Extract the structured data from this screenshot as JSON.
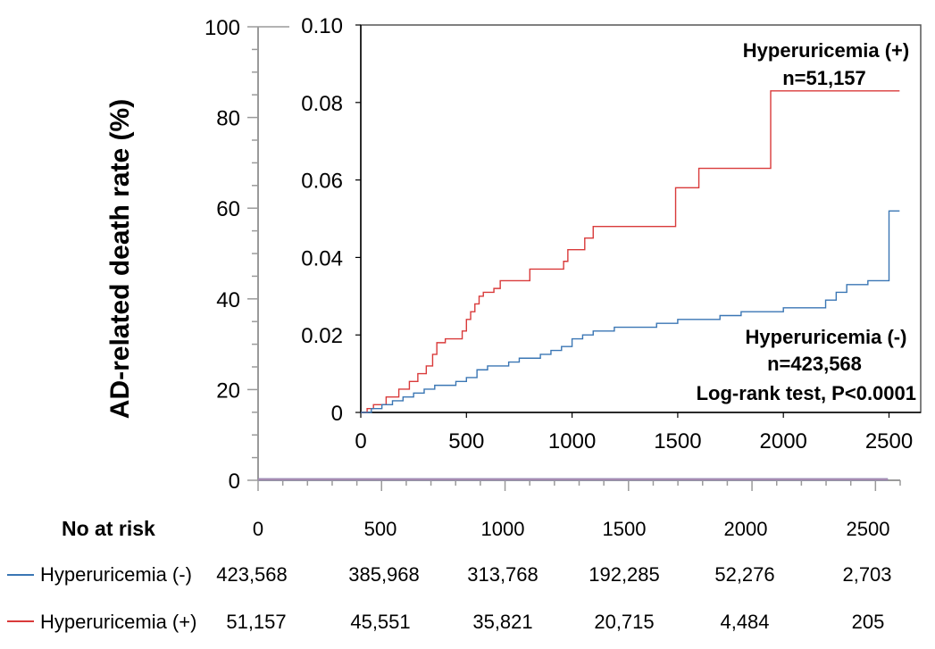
{
  "chart_data": {
    "type": "line",
    "ylabel": "AD-related death rate (%)",
    "outer_axis": {
      "x_ticks": [
        0,
        500,
        1000,
        1500,
        2000,
        2500
      ],
      "y_ticks": [
        0,
        20,
        40,
        60,
        80,
        100
      ],
      "xlim": [
        0,
        2600
      ],
      "ylim": [
        0,
        100
      ]
    },
    "inset": {
      "x_ticks": [
        0,
        500,
        1000,
        1500,
        2000,
        2500
      ],
      "y_ticks": [
        0,
        0.02,
        0.04,
        0.06,
        0.08,
        0.1
      ],
      "y_tick_labels": [
        "0",
        "0.02",
        "0.04",
        "0.06",
        "0.08",
        "0.10"
      ],
      "xlim": [
        0,
        2650
      ],
      "ylim": [
        0,
        0.1
      ]
    },
    "series": [
      {
        "name": "Hyperuricemia (+)",
        "color": "#d93a3a",
        "x": [
          0,
          30,
          60,
          120,
          180,
          230,
          270,
          310,
          340,
          360,
          400,
          450,
          480,
          500,
          520,
          540,
          560,
          580,
          600,
          630,
          660,
          700,
          800,
          900,
          960,
          980,
          1000,
          1060,
          1100,
          1150,
          1200,
          1300,
          1400,
          1490,
          1500,
          1600,
          1620,
          1700,
          1800,
          1900,
          1940,
          2000,
          2100,
          2200,
          2300,
          2400,
          2550
        ],
        "y": [
          0.0,
          0.001,
          0.002,
          0.004,
          0.006,
          0.008,
          0.01,
          0.012,
          0.015,
          0.018,
          0.019,
          0.019,
          0.021,
          0.024,
          0.026,
          0.028,
          0.03,
          0.031,
          0.031,
          0.032,
          0.034,
          0.034,
          0.037,
          0.037,
          0.039,
          0.042,
          0.042,
          0.045,
          0.048,
          0.048,
          0.048,
          0.048,
          0.048,
          0.058,
          0.058,
          0.063,
          0.063,
          0.063,
          0.063,
          0.063,
          0.083,
          0.083,
          0.083,
          0.083,
          0.083,
          0.083,
          0.083
        ]
      },
      {
        "name": "Hyperuricemia (-)",
        "color": "#3a76b4",
        "x": [
          0,
          50,
          100,
          150,
          200,
          250,
          300,
          350,
          400,
          450,
          500,
          550,
          600,
          650,
          700,
          750,
          800,
          850,
          900,
          950,
          1000,
          1050,
          1100,
          1200,
          1300,
          1400,
          1500,
          1600,
          1700,
          1800,
          1900,
          2000,
          2100,
          2200,
          2250,
          2300,
          2400,
          2490,
          2500,
          2550
        ],
        "y": [
          0.0,
          0.001,
          0.002,
          0.003,
          0.004,
          0.005,
          0.006,
          0.007,
          0.007,
          0.008,
          0.009,
          0.011,
          0.012,
          0.012,
          0.013,
          0.014,
          0.014,
          0.015,
          0.016,
          0.017,
          0.019,
          0.02,
          0.021,
          0.022,
          0.022,
          0.023,
          0.024,
          0.024,
          0.025,
          0.026,
          0.026,
          0.027,
          0.027,
          0.029,
          0.031,
          0.033,
          0.034,
          0.034,
          0.052,
          0.052
        ]
      }
    ],
    "annotations": {
      "plus_label": "Hyperuricemia (+)",
      "plus_n": "n=51,157",
      "minus_label": "Hyperuricemia (-)",
      "minus_n": "n=423,568",
      "logrank": "Log-rank test, P<0.0001"
    }
  },
  "risk_table": {
    "header": "No at risk",
    "columns": [
      "0",
      "500",
      "1000",
      "1500",
      "2000",
      "2500"
    ],
    "rows": [
      {
        "label": "Hyperuricemia (-)",
        "color": "#3a76b4",
        "values": [
          "423,568",
          "385,968",
          "313,768",
          "192,285",
          "52,276",
          "2,703"
        ]
      },
      {
        "label": "Hyperuricemia (+)",
        "color": "#d93a3a",
        "values": [
          "51,157",
          "45,551",
          "35,821",
          "20,715",
          "4,484",
          "205"
        ]
      }
    ]
  }
}
